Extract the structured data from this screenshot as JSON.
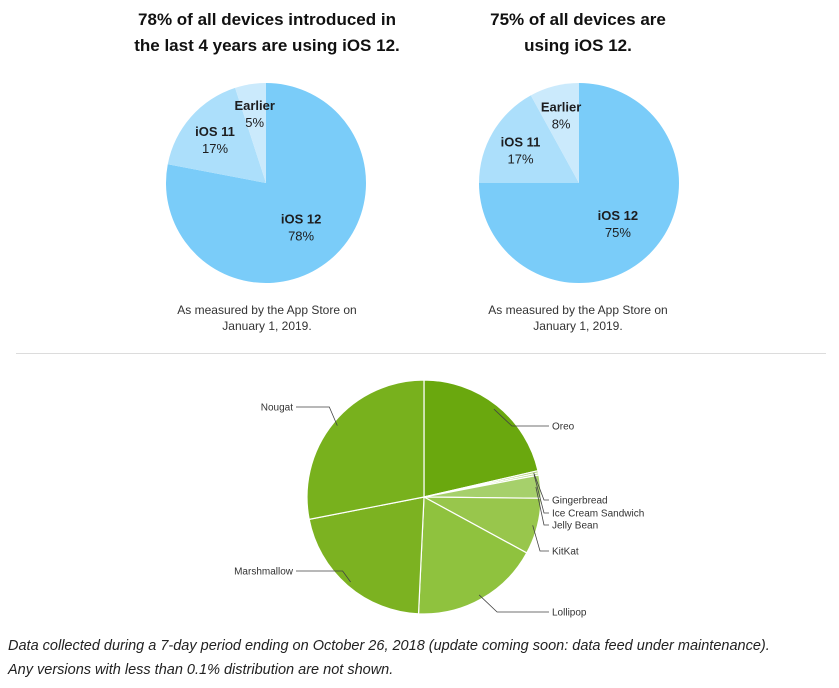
{
  "ios_charts": [
    {
      "title_lines": [
        "78% of all devices introduced in",
        "the last 4 years are using iOS 12."
      ],
      "caption_lines": [
        "As measured by the App Store on",
        "January 1, 2019."
      ],
      "chart_data": {
        "type": "pie",
        "title": "78% of all devices introduced in the last 4 years are using iOS 12.",
        "slices": [
          {
            "label": "iOS 12",
            "value": 78,
            "display": "78%",
            "color": "#7accf9"
          },
          {
            "label": "iOS 11",
            "value": 17,
            "display": "17%",
            "color": "#acdffb"
          },
          {
            "label": "Earlier",
            "value": 5,
            "display": "5%",
            "color": "#cbeafc"
          }
        ]
      }
    },
    {
      "title_lines": [
        "75% of all devices are",
        "using iOS 12."
      ],
      "caption_lines": [
        "As measured by the App Store on",
        "January 1, 2019."
      ],
      "chart_data": {
        "type": "pie",
        "title": "75% of all devices are using iOS 12.",
        "slices": [
          {
            "label": "iOS 12",
            "value": 75,
            "display": "75%",
            "color": "#7accf9"
          },
          {
            "label": "iOS 11",
            "value": 17,
            "display": "17%",
            "color": "#acdffb"
          },
          {
            "label": "Earlier",
            "value": 8,
            "display": "8%",
            "color": "#cbeafc"
          }
        ]
      }
    }
  ],
  "android_chart": {
    "chart_data": {
      "type": "pie",
      "slices": [
        {
          "label": "Oreo",
          "value": 21.5,
          "color": "#6aa80e"
        },
        {
          "label": "Gingerbread",
          "value": 0.3,
          "color": "#a8cc6a"
        },
        {
          "label": "Ice Cream Sandwich",
          "value": 0.3,
          "color": "#b9d88a"
        },
        {
          "label": "Jelly Bean",
          "value": 3.2,
          "color": "#a6d06b"
        },
        {
          "label": "KitKat",
          "value": 7.8,
          "color": "#98c64c"
        },
        {
          "label": "Lollipop",
          "value": 17.9,
          "color": "#8fc23e"
        },
        {
          "label": "Marshmallow",
          "value": 21.3,
          "color": "#7cb221"
        },
        {
          "label": "Nougat",
          "value": 28.2,
          "color": "#78b11d"
        }
      ]
    }
  },
  "footnote": {
    "line1": "Data collected during a 7-day period ending on October 26, 2018 (update coming soon: data feed under maintenance).",
    "line2": "Any versions with less than 0.1% distribution are not shown."
  }
}
